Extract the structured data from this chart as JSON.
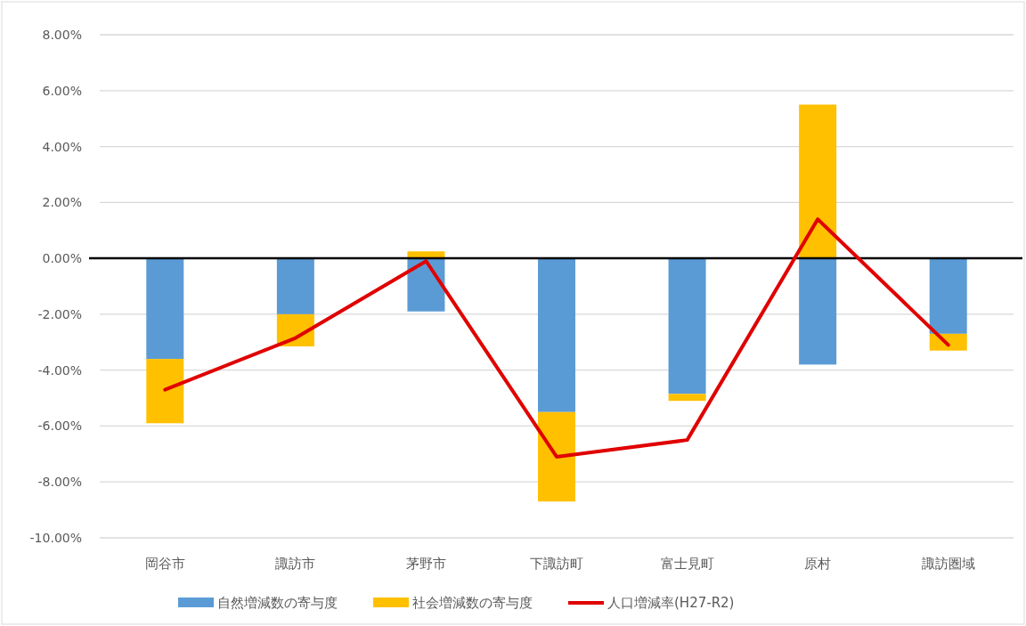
{
  "chart_data": {
    "type": "bar",
    "stacked": true,
    "categories": [
      "岡谷市",
      "諏訪市",
      "茅野市",
      "下諏訪町",
      "富士見町",
      "原村",
      "諏訪圏域"
    ],
    "series": [
      {
        "name": "自然増減数の寄与度",
        "color": "#5b9bd5",
        "values": [
          -3.6,
          -2.0,
          -1.9,
          -5.5,
          -4.85,
          -3.8,
          -2.7
        ]
      },
      {
        "name": "社会増減数の寄与度",
        "color": "#ffc000",
        "values": [
          -2.3,
          -1.15,
          0.25,
          -3.2,
          -0.25,
          5.5,
          -0.6
        ]
      },
      {
        "name": "人口増減率(H27-R2)",
        "color": "#e00000",
        "type": "line",
        "values": [
          -4.7,
          -2.85,
          -0.1,
          -7.1,
          -6.5,
          1.4,
          -3.1
        ]
      }
    ],
    "ylim": [
      -10,
      8
    ],
    "yticks": [
      {
        "value": -10,
        "label": "-10.00%"
      },
      {
        "value": -8,
        "label": "-8.00%"
      },
      {
        "value": -6,
        "label": "-6.00%"
      },
      {
        "value": -4,
        "label": "-4.00%"
      },
      {
        "value": -2,
        "label": "-2.00%"
      },
      {
        "value": 0,
        "label": "0.00%"
      },
      {
        "value": 2,
        "label": "2.00%"
      },
      {
        "value": 4,
        "label": "4.00%"
      },
      {
        "value": 6,
        "label": "6.00%"
      },
      {
        "value": 8,
        "label": "8.00%"
      }
    ],
    "grid": "y",
    "legend": "bottom",
    "marker": "none",
    "line_style": "solid"
  }
}
